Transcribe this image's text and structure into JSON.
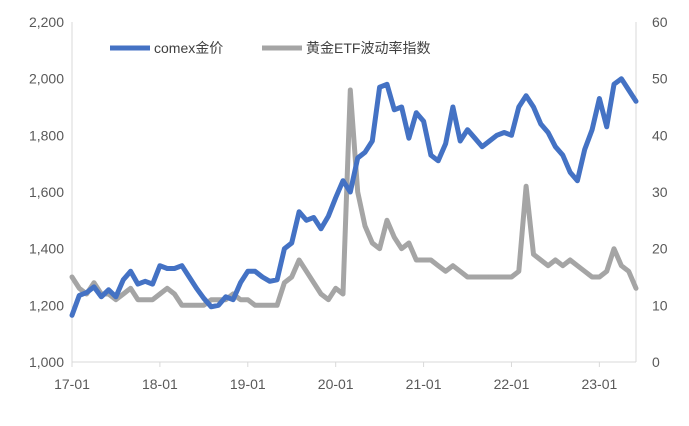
{
  "chart_data": {
    "type": "line",
    "x_ticks": [
      "17-01",
      "18-01",
      "19-01",
      "20-01",
      "21-01",
      "22-01",
      "23-01"
    ],
    "y_left": {
      "ticks": [
        "1,000",
        "1,200",
        "1,400",
        "1,600",
        "1,800",
        "2,000",
        "2,200"
      ],
      "min": 1000,
      "max": 2200
    },
    "y_right": {
      "ticks": [
        "0",
        "10",
        "20",
        "30",
        "40",
        "50",
        "60"
      ],
      "min": 0,
      "max": 60
    },
    "x_range": [
      "2017-01",
      "2023-06"
    ],
    "grid": false,
    "legend_position": "top",
    "series": [
      {
        "name": "comex金价",
        "axis": "left",
        "color": "#4472C4",
        "points": [
          [
            "2017-01",
            1165
          ],
          [
            "2017-02",
            1235
          ],
          [
            "2017-03",
            1245
          ],
          [
            "2017-04",
            1265
          ],
          [
            "2017-05",
            1230
          ],
          [
            "2017-06",
            1255
          ],
          [
            "2017-07",
            1230
          ],
          [
            "2017-08",
            1290
          ],
          [
            "2017-09",
            1320
          ],
          [
            "2017-10",
            1275
          ],
          [
            "2017-11",
            1285
          ],
          [
            "2017-12",
            1275
          ],
          [
            "2018-01",
            1340
          ],
          [
            "2018-02",
            1330
          ],
          [
            "2018-03",
            1330
          ],
          [
            "2018-04",
            1340
          ],
          [
            "2018-05",
            1300
          ],
          [
            "2018-06",
            1260
          ],
          [
            "2018-07",
            1225
          ],
          [
            "2018-08",
            1195
          ],
          [
            "2018-09",
            1200
          ],
          [
            "2018-10",
            1230
          ],
          [
            "2018-11",
            1220
          ],
          [
            "2018-12",
            1280
          ],
          [
            "2019-01",
            1320
          ],
          [
            "2019-02",
            1320
          ],
          [
            "2019-03",
            1300
          ],
          [
            "2019-04",
            1285
          ],
          [
            "2019-05",
            1290
          ],
          [
            "2019-06",
            1400
          ],
          [
            "2019-07",
            1420
          ],
          [
            "2019-08",
            1530
          ],
          [
            "2019-09",
            1500
          ],
          [
            "2019-10",
            1510
          ],
          [
            "2019-11",
            1470
          ],
          [
            "2019-12",
            1515
          ],
          [
            "2020-01",
            1580
          ],
          [
            "2020-02",
            1640
          ],
          [
            "2020-03",
            1600
          ],
          [
            "2020-04",
            1720
          ],
          [
            "2020-05",
            1740
          ],
          [
            "2020-06",
            1780
          ],
          [
            "2020-07",
            1970
          ],
          [
            "2020-08",
            1980
          ],
          [
            "2020-09",
            1890
          ],
          [
            "2020-10",
            1900
          ],
          [
            "2020-11",
            1790
          ],
          [
            "2020-12",
            1880
          ],
          [
            "2021-01",
            1850
          ],
          [
            "2021-02",
            1730
          ],
          [
            "2021-03",
            1710
          ],
          [
            "2021-04",
            1770
          ],
          [
            "2021-05",
            1900
          ],
          [
            "2021-06",
            1780
          ],
          [
            "2021-07",
            1820
          ],
          [
            "2021-08",
            1790
          ],
          [
            "2021-09",
            1760
          ],
          [
            "2021-10",
            1780
          ],
          [
            "2021-11",
            1800
          ],
          [
            "2021-12",
            1810
          ],
          [
            "2022-01",
            1800
          ],
          [
            "2022-02",
            1900
          ],
          [
            "2022-03",
            1940
          ],
          [
            "2022-04",
            1900
          ],
          [
            "2022-05",
            1840
          ],
          [
            "2022-06",
            1810
          ],
          [
            "2022-07",
            1760
          ],
          [
            "2022-08",
            1730
          ],
          [
            "2022-09",
            1670
          ],
          [
            "2022-10",
            1640
          ],
          [
            "2022-11",
            1750
          ],
          [
            "2022-12",
            1820
          ],
          [
            "2023-01",
            1930
          ],
          [
            "2023-02",
            1830
          ],
          [
            "2023-03",
            1980
          ],
          [
            "2023-04",
            2000
          ],
          [
            "2023-05",
            1960
          ],
          [
            "2023-06",
            1920
          ]
        ]
      },
      {
        "name": "黄金ETF波动率指数",
        "axis": "right",
        "color": "#A5A5A5",
        "points": [
          [
            "2017-01",
            15
          ],
          [
            "2017-02",
            13
          ],
          [
            "2017-03",
            12
          ],
          [
            "2017-04",
            14
          ],
          [
            "2017-05",
            12
          ],
          [
            "2017-06",
            12
          ],
          [
            "2017-07",
            11
          ],
          [
            "2017-08",
            12
          ],
          [
            "2017-09",
            13
          ],
          [
            "2017-10",
            11
          ],
          [
            "2017-11",
            11
          ],
          [
            "2017-12",
            11
          ],
          [
            "2018-01",
            12
          ],
          [
            "2018-02",
            13
          ],
          [
            "2018-03",
            12
          ],
          [
            "2018-04",
            10
          ],
          [
            "2018-05",
            10
          ],
          [
            "2018-06",
            10
          ],
          [
            "2018-07",
            10
          ],
          [
            "2018-08",
            11
          ],
          [
            "2018-09",
            11
          ],
          [
            "2018-10",
            11
          ],
          [
            "2018-11",
            12
          ],
          [
            "2018-12",
            11
          ],
          [
            "2019-01",
            11
          ],
          [
            "2019-02",
            10
          ],
          [
            "2019-03",
            10
          ],
          [
            "2019-04",
            10
          ],
          [
            "2019-05",
            10
          ],
          [
            "2019-06",
            14
          ],
          [
            "2019-07",
            15
          ],
          [
            "2019-08",
            18
          ],
          [
            "2019-09",
            16
          ],
          [
            "2019-10",
            14
          ],
          [
            "2019-11",
            12
          ],
          [
            "2019-12",
            11
          ],
          [
            "2020-01",
            13
          ],
          [
            "2020-02",
            12
          ],
          [
            "2020-03",
            48
          ],
          [
            "2020-04",
            30
          ],
          [
            "2020-05",
            24
          ],
          [
            "2020-06",
            21
          ],
          [
            "2020-07",
            20
          ],
          [
            "2020-08",
            25
          ],
          [
            "2020-09",
            22
          ],
          [
            "2020-10",
            20
          ],
          [
            "2020-11",
            21
          ],
          [
            "2020-12",
            18
          ],
          [
            "2021-01",
            18
          ],
          [
            "2021-02",
            18
          ],
          [
            "2021-03",
            17
          ],
          [
            "2021-04",
            16
          ],
          [
            "2021-05",
            17
          ],
          [
            "2021-06",
            16
          ],
          [
            "2021-07",
            15
          ],
          [
            "2021-08",
            15
          ],
          [
            "2021-09",
            15
          ],
          [
            "2021-10",
            15
          ],
          [
            "2021-11",
            15
          ],
          [
            "2021-12",
            15
          ],
          [
            "2022-01",
            15
          ],
          [
            "2022-02",
            16
          ],
          [
            "2022-03",
            31
          ],
          [
            "2022-04",
            19
          ],
          [
            "2022-05",
            18
          ],
          [
            "2022-06",
            17
          ],
          [
            "2022-07",
            18
          ],
          [
            "2022-08",
            17
          ],
          [
            "2022-09",
            18
          ],
          [
            "2022-10",
            17
          ],
          [
            "2022-11",
            16
          ],
          [
            "2022-12",
            15
          ],
          [
            "2023-01",
            15
          ],
          [
            "2023-02",
            16
          ],
          [
            "2023-03",
            20
          ],
          [
            "2023-04",
            17
          ],
          [
            "2023-05",
            16
          ],
          [
            "2023-06",
            13
          ]
        ]
      }
    ]
  }
}
